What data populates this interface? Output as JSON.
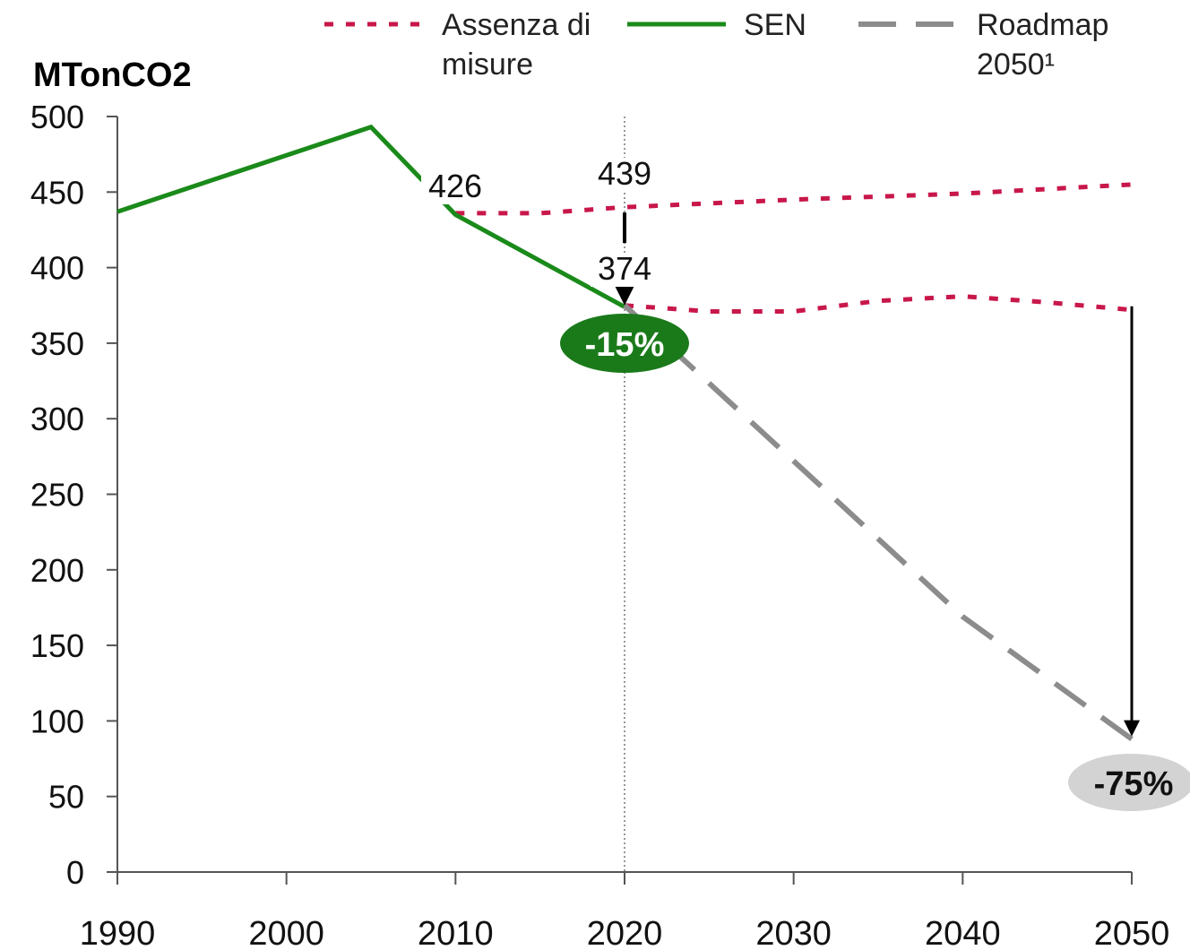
{
  "chart_data": {
    "type": "line",
    "y_label": "MTonCO2",
    "xlim": [
      1990,
      2050
    ],
    "xticks": [
      1990,
      2000,
      2010,
      2020,
      2030,
      2040,
      2050
    ],
    "ylim": [
      0,
      500
    ],
    "yticks": [
      0,
      50,
      100,
      150,
      200,
      250,
      300,
      350,
      400,
      450,
      500
    ],
    "series": [
      {
        "name": "Assenza di misure",
        "color": "#c8174a",
        "style": "dotted",
        "x": [
          2010,
          2015,
          2020,
          2030,
          2040,
          2050
        ],
        "values": [
          436,
          436,
          440,
          445,
          449,
          455
        ]
      },
      {
        "color": "#c8174a",
        "style": "dotted",
        "x": [
          2020,
          2025,
          2030,
          2035,
          2040,
          2045,
          2050
        ],
        "values": [
          375,
          371,
          371,
          378,
          381,
          377,
          372
        ]
      },
      {
        "name": "SEN",
        "color": "#1a8a1a",
        "style": "solid",
        "x": [
          1990,
          2005,
          2010,
          2020
        ],
        "values": [
          437,
          493,
          435,
          374
        ]
      },
      {
        "name": "Roadmap 2050¹",
        "color": "#8c8c8c",
        "style": "dashed",
        "x": [
          2020,
          2040,
          2050
        ],
        "values": [
          375,
          169,
          88
        ]
      }
    ],
    "annotations": [
      "426",
      "439",
      "374",
      "-15%",
      "-75%"
    ]
  }
}
